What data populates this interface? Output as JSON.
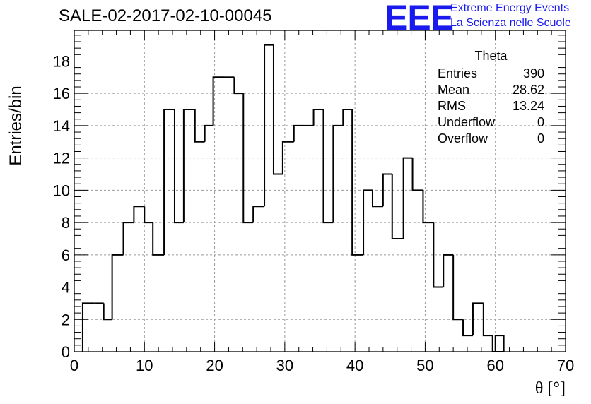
{
  "header": {
    "title": "SALE-02-2017-02-10-00045",
    "logo_text": "EEE",
    "logo_line1": "Extreme Energy Events",
    "logo_line2": "La Scienza nelle Scuole",
    "logo_color": "#1a1aee"
  },
  "stats_box": {
    "title": "Theta",
    "rows": [
      {
        "label": "Entries",
        "value": "390"
      },
      {
        "label": "Mean",
        "value": "28.62"
      },
      {
        "label": "RMS",
        "value": "13.24"
      },
      {
        "label": "Underflow",
        "value": "0"
      },
      {
        "label": "Overflow",
        "value": "0"
      }
    ]
  },
  "chart_data": {
    "type": "bar",
    "style": "step-histogram",
    "xlabel": "θ [°]",
    "ylabel": "Entries/bin",
    "xlim": [
      0,
      70
    ],
    "ylim": [
      0,
      19.9
    ],
    "grid": true,
    "bin_edges": [
      1.2,
      2.9,
      4.2,
      5.4,
      7.0,
      8.5,
      10.0,
      11.2,
      12.8,
      14.3,
      15.6,
      17.2,
      18.6,
      19.8,
      21.5,
      22.8,
      24.1,
      25.5,
      27.1,
      28.4,
      29.7,
      31.3,
      32.6,
      34.1,
      35.5,
      36.9,
      38.3,
      39.6,
      41.2,
      42.5,
      44.0,
      45.3,
      46.9,
      48.2,
      49.7,
      51.2,
      52.6,
      54.0,
      55.4,
      56.8,
      58.3,
      59.6,
      61.2
    ],
    "values": [
      3,
      3,
      2,
      6,
      8,
      9,
      8,
      6,
      15,
      8,
      15,
      13,
      14,
      17,
      17,
      16,
      8,
      9,
      19,
      11,
      13,
      14,
      14,
      15,
      8,
      14,
      15,
      6,
      10,
      9,
      11,
      7,
      12,
      10,
      8,
      4,
      6,
      2,
      1,
      3,
      1,
      0
    ],
    "extra_bins": [
      {
        "x0": 60.0,
        "x1": 61.2,
        "value": 1
      }
    ],
    "x_ticks": [
      0,
      10,
      20,
      30,
      40,
      50,
      60,
      70
    ],
    "y_ticks": [
      0,
      2,
      4,
      6,
      8,
      10,
      12,
      14,
      16,
      18
    ]
  }
}
